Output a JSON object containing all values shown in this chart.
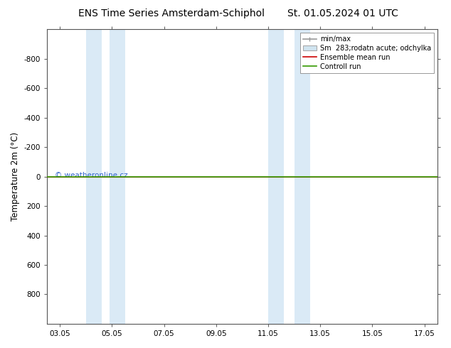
{
  "title_left": "ENS Time Series Amsterdam-Schiphol",
  "title_right": "St. 01.05.2024 01 UTC",
  "ylabel": "Temperature 2m (°C)",
  "ylim_top": -1000,
  "ylim_bottom": 1000,
  "yticks": [
    -800,
    -600,
    -400,
    -200,
    0,
    200,
    400,
    600,
    800
  ],
  "xlim": [
    2.5,
    17.5
  ],
  "x_positions": [
    3,
    5,
    7,
    9,
    11,
    13,
    15,
    17
  ],
  "xticklabels": [
    "03.05",
    "05.05",
    "07.05",
    "09.05",
    "11.05",
    "13.05",
    "15.05",
    "17.05"
  ],
  "blue_bands": [
    [
      4.0,
      4.6
    ],
    [
      4.9,
      5.5
    ],
    [
      11.0,
      11.6
    ],
    [
      12.0,
      12.6
    ]
  ],
  "blue_band_color": "#daeaf6",
  "green_line_y": 0,
  "green_line_color": "#339900",
  "red_line_color": "#cc0000",
  "minmax_color": "#999999",
  "legend_label_minmax": "min/max",
  "legend_label_sm": "Sm  283;rodatn acute; odchylka",
  "legend_label_ens": "Ensemble mean run",
  "legend_label_ctrl": "Controll run",
  "legend_patch_color": "#d0e4f0",
  "legend_patch_edge": "#aaaaaa",
  "watermark": "© weatheronline.cz",
  "watermark_color": "#3366cc",
  "bg_color": "#ffffff",
  "plot_bg_color": "#ffffff",
  "title_fontsize": 10,
  "tick_fontsize": 7.5,
  "ylabel_fontsize": 8.5,
  "legend_fontsize": 7
}
